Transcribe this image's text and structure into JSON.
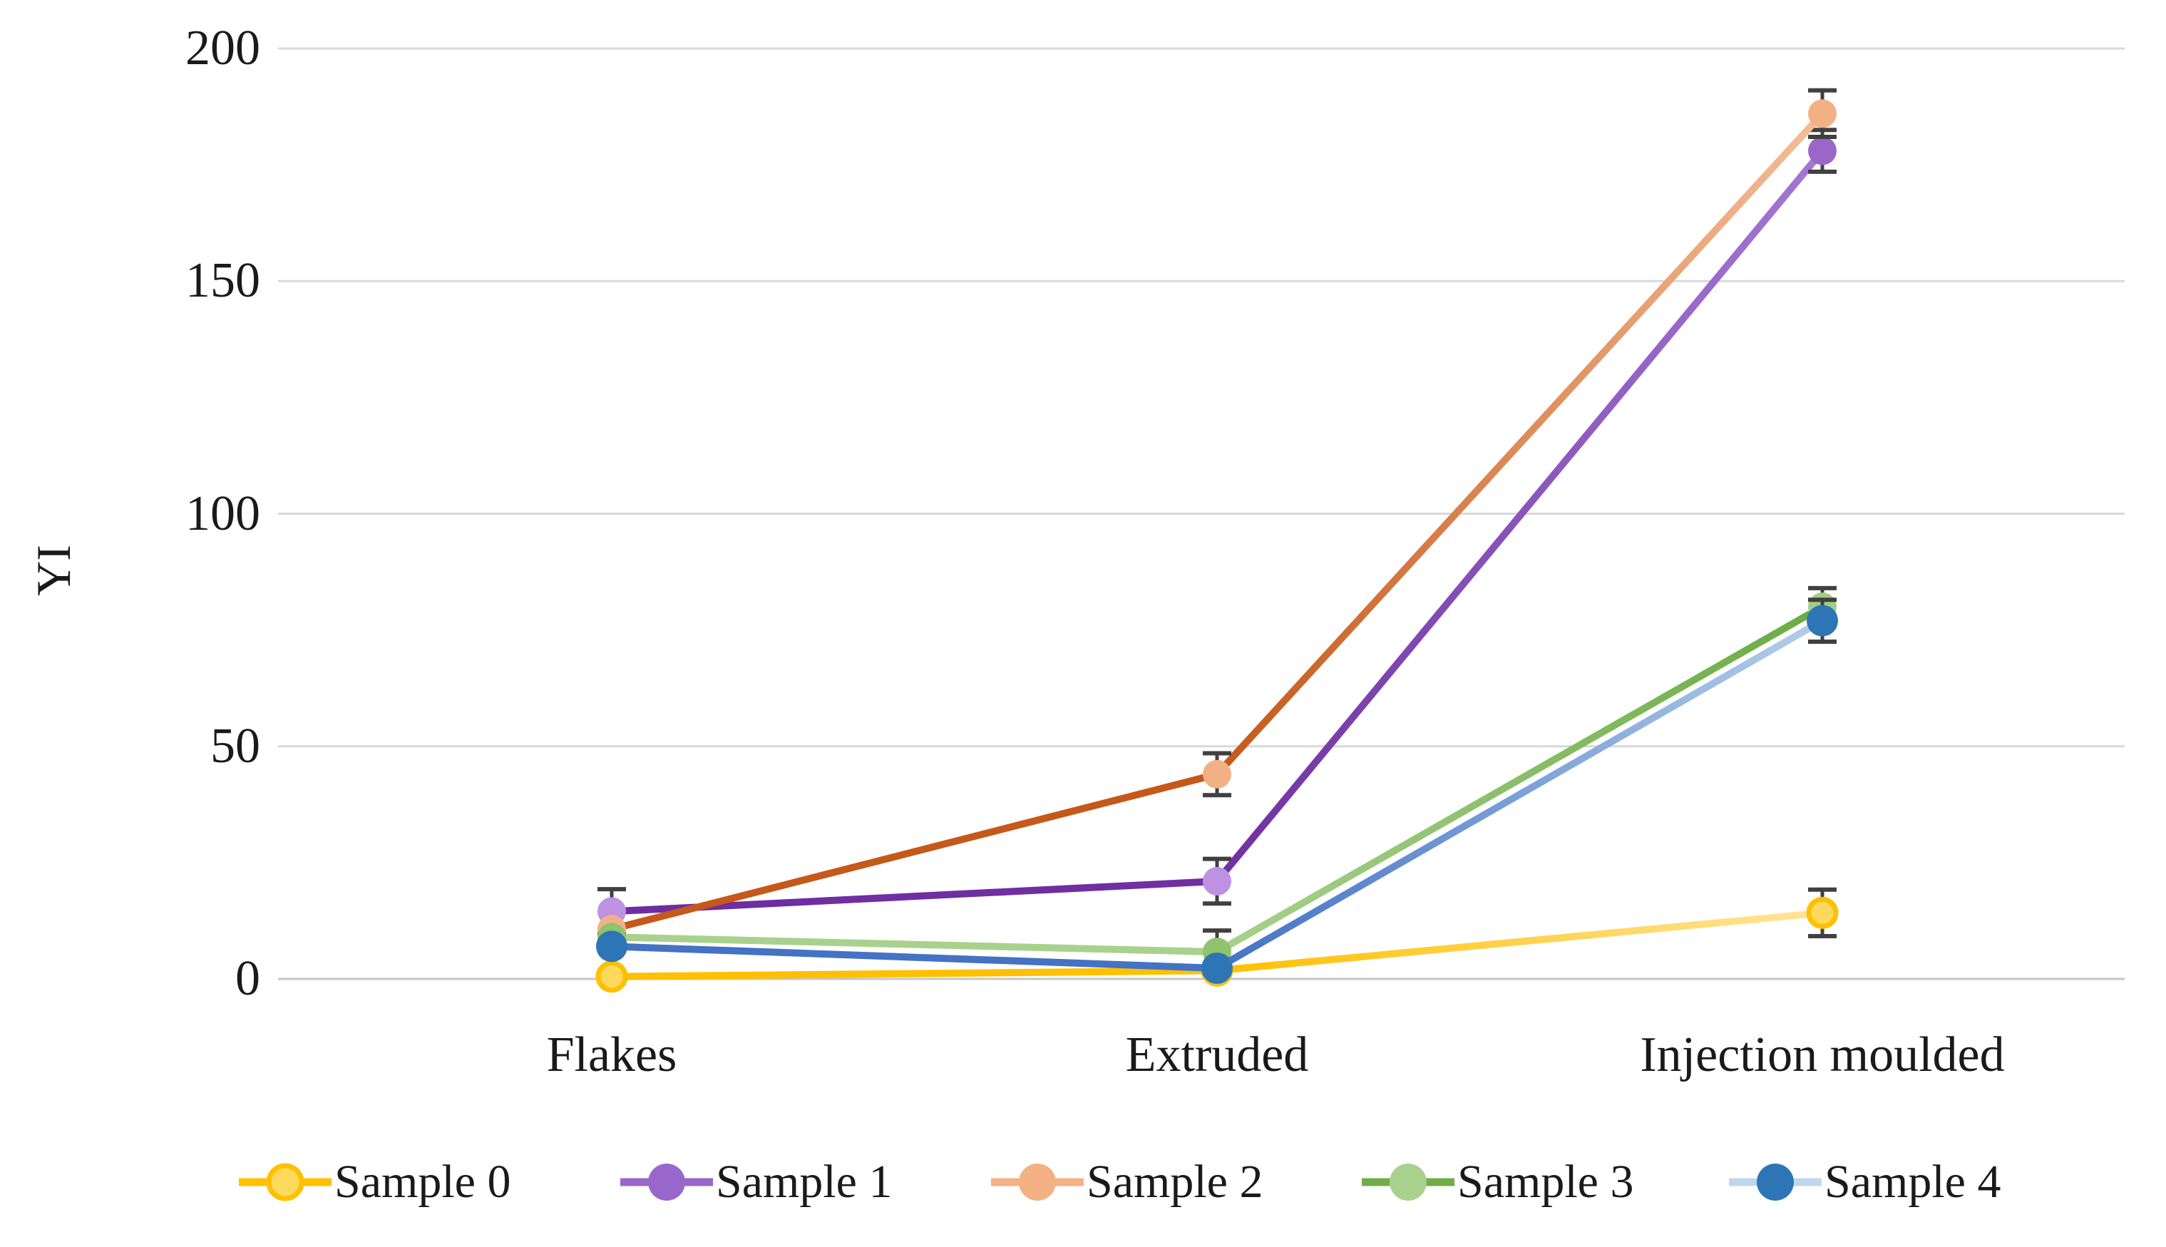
{
  "chart_data": {
    "type": "line",
    "title": "",
    "ylabel": "YI",
    "xlabel": "",
    "categories": [
      "Flakes",
      "Extruded",
      "Injection moulded"
    ],
    "yticks": [
      0,
      50,
      100,
      150,
      200
    ],
    "ylim": [
      0,
      200
    ],
    "grid": true,
    "legend_position": "bottom",
    "gridline_color": "#D9D9D9",
    "zero_line_color": "#C6C6C6",
    "error_bar_color": "#404040",
    "text_color": "#1A1A1A",
    "series": [
      {
        "name": "Sample 0",
        "values": [
          0.5,
          1.8,
          14.2
        ],
        "errors": [
          0,
          0,
          5
        ],
        "line_colors": [
          "#FFC000",
          "#FFC000",
          "#FFE59B"
        ],
        "marker_fills": [
          "#FFD95E",
          "#FFD95E",
          "#FFD95E"
        ],
        "marker_stroke": "#FFC000",
        "marker_radius": 19,
        "legend_line": "#FFC000",
        "legend_marker": "#FFD95E",
        "legend_marker_stroke": "#FFC000"
      },
      {
        "name": "Sample 1",
        "values": [
          14.5,
          21,
          178
        ],
        "errors": [
          4.8,
          4.8,
          4.5
        ],
        "line_colors": [
          "#6E2CA3",
          "#7030A0",
          "#A478D4"
        ],
        "marker_fills": [
          "#BD92E2",
          "#BD92E2",
          "#9A67C9"
        ],
        "marker_stroke": "",
        "marker_radius": 20,
        "legend_line": "#9966CC",
        "legend_marker": "#9966CC",
        "legend_marker_stroke": ""
      },
      {
        "name": "Sample 2",
        "values": [
          10.7,
          44,
          186
        ],
        "errors": [
          0,
          4.5,
          5
        ],
        "line_colors": [
          "#C5581A",
          "#C5581A",
          "#F5BE98"
        ],
        "marker_fills": [
          "#F2B184",
          "#F2B184",
          "#F2B184"
        ],
        "marker_stroke": "",
        "marker_radius": 20,
        "legend_line": "#F4B183",
        "legend_marker": "#F4B183",
        "legend_marker_stroke": ""
      },
      {
        "name": "Sample 3",
        "values": [
          9,
          5.8,
          80
        ],
        "errors": [
          0,
          4.6,
          4
        ],
        "line_colors": [
          "#A9D18E",
          "#A9D18E",
          "#6BAB44"
        ],
        "marker_fills": [
          "#8FC36E",
          "#8FC36E",
          "#A3CD86"
        ],
        "marker_stroke": "",
        "marker_radius": 20,
        "legend_line": "#70AD47",
        "legend_marker": "#A9D18E",
        "legend_marker_stroke": ""
      },
      {
        "name": "Sample 4",
        "values": [
          7,
          2.3,
          77
        ],
        "errors": [
          0,
          0,
          4.5
        ],
        "line_colors": [
          "#4472C4",
          "#4472C4",
          "#B3CFEA"
        ],
        "marker_fills": [
          "#2E75B6",
          "#2E75B6",
          "#2E75B6"
        ],
        "marker_stroke": "",
        "marker_radius": 22,
        "legend_line": "#BDD7EE",
        "legend_marker": "#2E75B6",
        "legend_marker_stroke": ""
      }
    ]
  }
}
